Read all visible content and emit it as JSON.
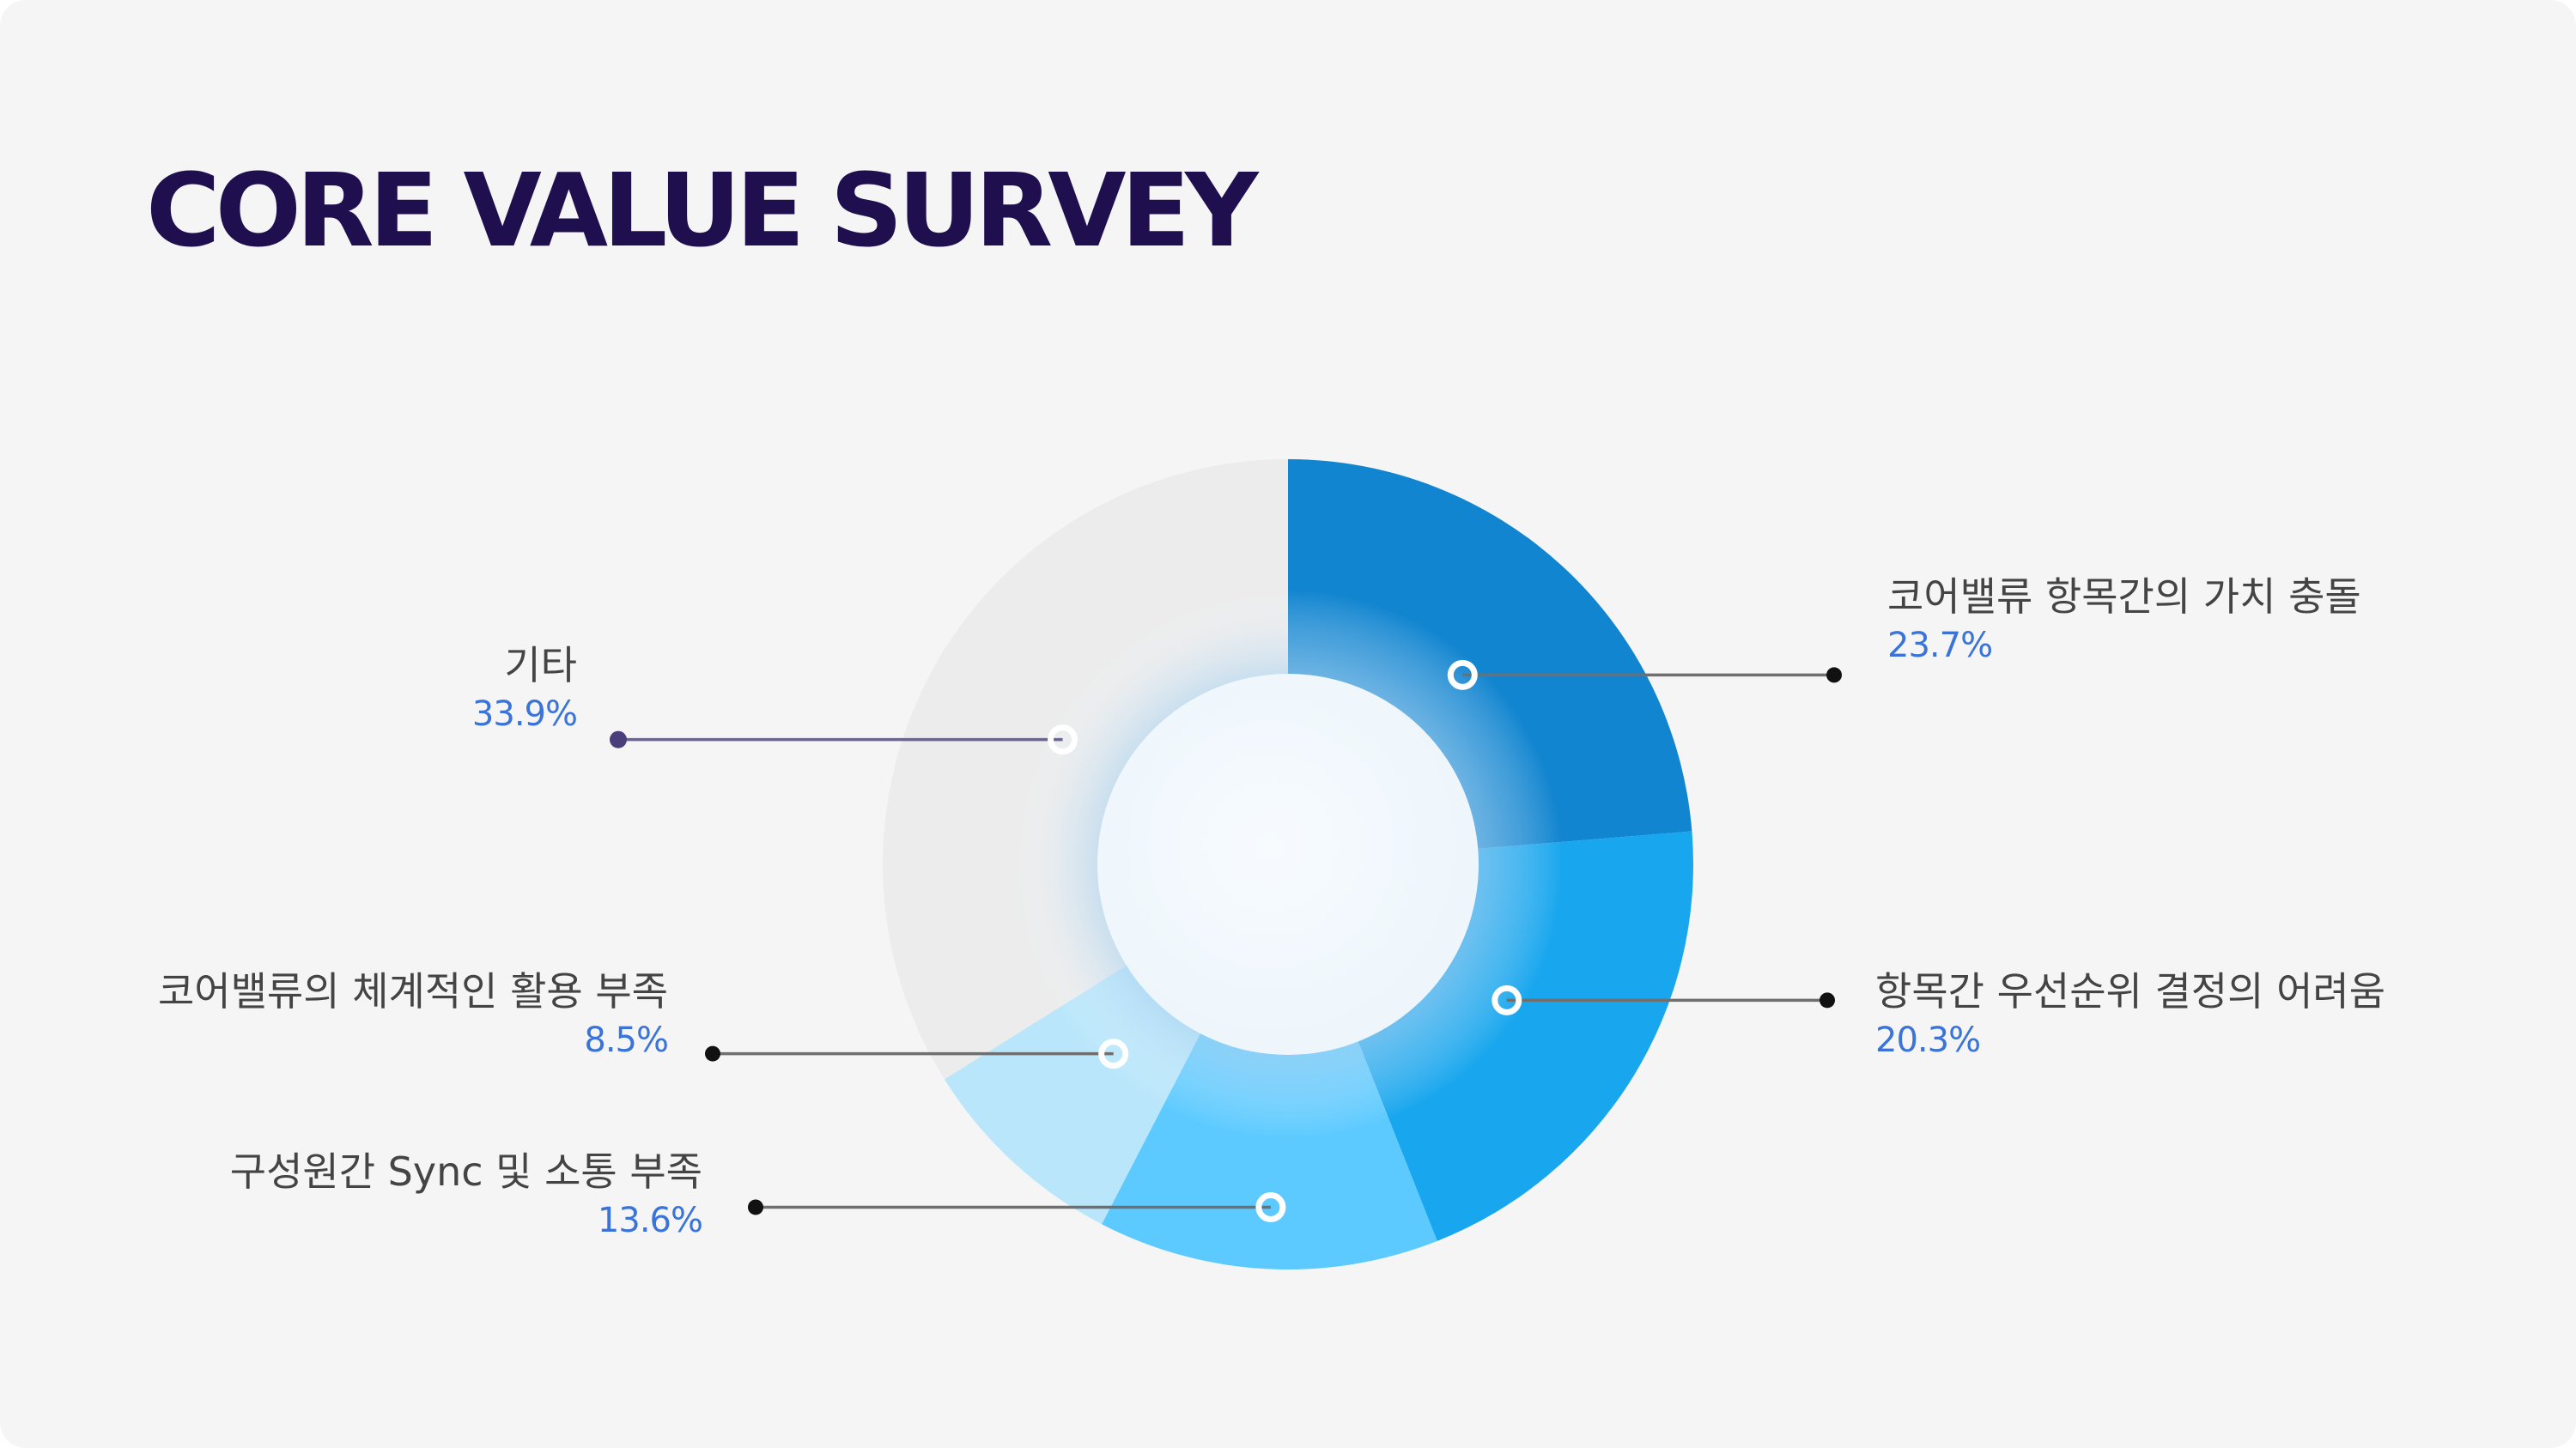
{
  "title": "CORE VALUE SURVEY",
  "chart_data": {
    "type": "pie",
    "variant": "donut",
    "title": "CORE VALUE SURVEY",
    "slices": [
      {
        "label": "코어밸류 항목간의 가치 충돌",
        "value": 23.7,
        "display": "23.7%",
        "color": "#1285d0"
      },
      {
        "label": "항목간 우선순위 결정의 어려움",
        "value": 20.3,
        "display": "20.3%",
        "color": "#18a6ee"
      },
      {
        "label": "구성원간 Sync 및 소통 부족",
        "value": 13.6,
        "display": "13.6%",
        "color": "#5ccaff"
      },
      {
        "label": "코어밸류의 체계적인 활용 부족",
        "value": 8.5,
        "display": "8.5%",
        "color": "#b9e6fb"
      },
      {
        "label": "기타",
        "value": 33.9,
        "display": "33.9%",
        "color": "#ececec"
      }
    ],
    "start_angle": "12 o'clock",
    "direction": "clockwise",
    "legend": "leader-line labels"
  }
}
